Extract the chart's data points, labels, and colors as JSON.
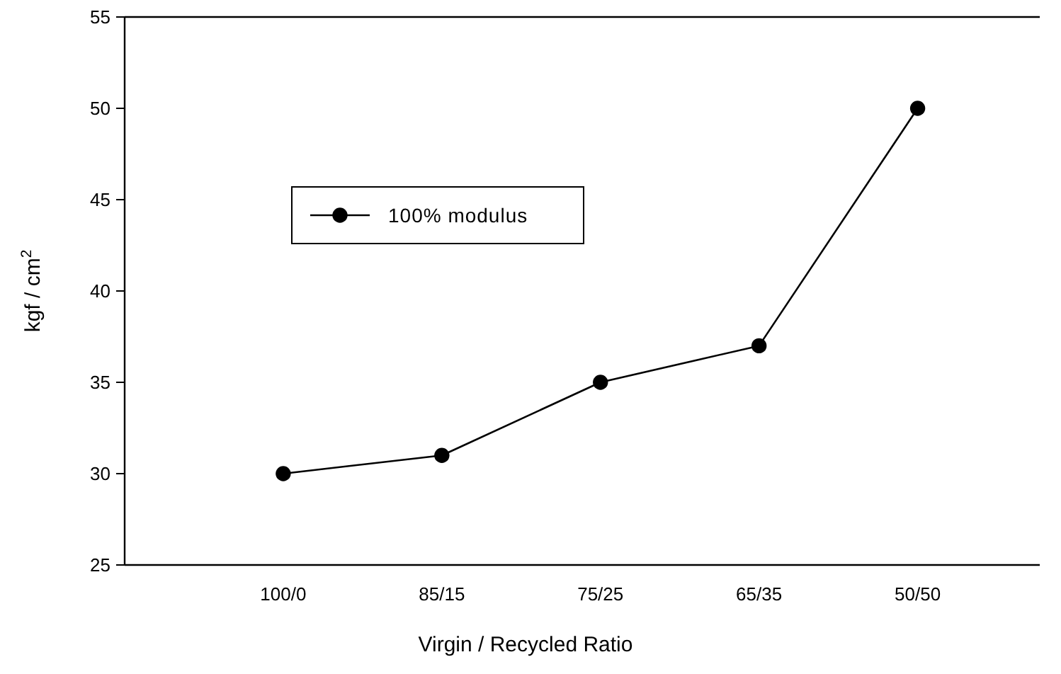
{
  "chart_data": {
    "type": "line",
    "xlabel": "Virgin / Recycled Ratio",
    "ylabel": "kgf / cm$^{2}$",
    "categories": [
      "100/0",
      "85/15",
      "75/25",
      "65/35",
      "50/50"
    ],
    "series": [
      {
        "name": "100% modulus",
        "color": "#000000",
        "values": [
          30,
          31,
          35,
          37,
          50
        ]
      }
    ],
    "ylim": [
      25,
      55
    ],
    "yticks": [
      25,
      30,
      35,
      40,
      45,
      50,
      55
    ],
    "marker": "circle",
    "line_style": "solid",
    "legend": "top left",
    "grid": false
  }
}
